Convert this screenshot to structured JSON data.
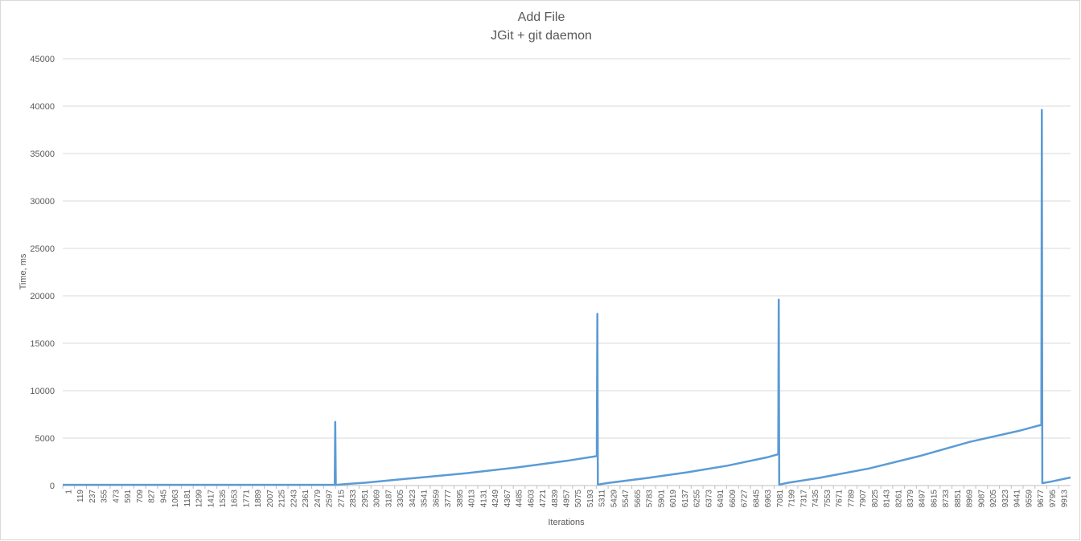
{
  "chart_data": {
    "type": "line",
    "title": "Add File",
    "subtitle": "JGit + git daemon",
    "xlabel": "Iterations",
    "ylabel": "Time, ms",
    "x_range": [
      1,
      10000
    ],
    "ylim": [
      0,
      45000
    ],
    "yticks": [
      0,
      5000,
      10000,
      15000,
      20000,
      25000,
      30000,
      35000,
      40000,
      45000
    ],
    "xtick_labels": [
      "1",
      "119",
      "237",
      "355",
      "473",
      "591",
      "709",
      "827",
      "945",
      "1063",
      "1181",
      "1299",
      "1417",
      "1535",
      "1653",
      "1771",
      "1889",
      "2007",
      "2125",
      "2243",
      "2361",
      "2479",
      "2597",
      "2715",
      "2833",
      "2951",
      "3069",
      "3187",
      "3305",
      "3423",
      "3541",
      "3659",
      "3777",
      "3895",
      "4013",
      "4131",
      "4249",
      "4367",
      "4485",
      "4603",
      "4721",
      "4839",
      "4957",
      "5075",
      "5193",
      "5311",
      "5429",
      "5547",
      "5665",
      "5783",
      "5901",
      "6019",
      "6137",
      "6255",
      "6373",
      "6491",
      "6609",
      "6727",
      "6845",
      "6963",
      "7081",
      "7199",
      "7317",
      "7435",
      "7553",
      "7671",
      "7789",
      "7907",
      "8025",
      "8143",
      "8261",
      "8379",
      "8497",
      "8615",
      "8733",
      "8851",
      "8969",
      "9087",
      "9205",
      "9323",
      "9441",
      "9559",
      "9677",
      "9795",
      "9913"
    ],
    "grid": true,
    "legend": "none",
    "color": "#5b9bd5",
    "series": [
      {
        "points": [
          [
            1,
            80
          ],
          [
            2700,
            80
          ],
          [
            2705,
            6700
          ],
          [
            2710,
            80
          ],
          [
            2720,
            80
          ],
          [
            2800,
            150
          ],
          [
            3000,
            300
          ],
          [
            3500,
            800
          ],
          [
            4000,
            1300
          ],
          [
            4500,
            1900
          ],
          [
            5000,
            2600
          ],
          [
            5300,
            3100
          ],
          [
            5305,
            18100
          ],
          [
            5310,
            100
          ],
          [
            5400,
            250
          ],
          [
            5800,
            800
          ],
          [
            6200,
            1400
          ],
          [
            6600,
            2100
          ],
          [
            7000,
            3000
          ],
          [
            7100,
            3300
          ],
          [
            7105,
            19600
          ],
          [
            7110,
            100
          ],
          [
            7200,
            300
          ],
          [
            7500,
            800
          ],
          [
            8000,
            1800
          ],
          [
            8500,
            3100
          ],
          [
            9000,
            4600
          ],
          [
            9500,
            5800
          ],
          [
            9710,
            6400
          ],
          [
            9715,
            39600
          ],
          [
            9720,
            250
          ],
          [
            9800,
            400
          ],
          [
            10000,
            850
          ]
        ]
      }
    ]
  }
}
